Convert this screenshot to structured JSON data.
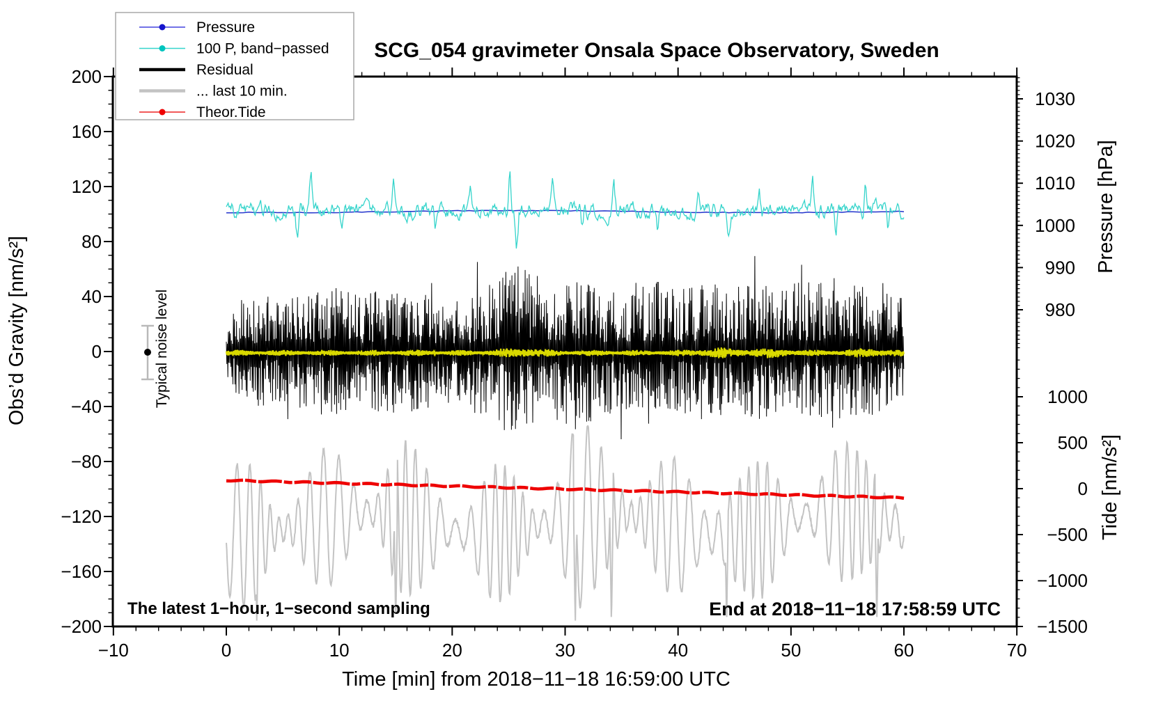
{
  "title": "SCG_054 gravimeter Onsala Space Observatory, Sweden",
  "annotations": {
    "sampling_note": "The latest 1−hour, 1−second sampling",
    "end_note": "End at 2018−11−18 17:58:59 UTC",
    "noise_marker_label": "Typical noise level"
  },
  "legend": {
    "items": [
      {
        "label": "Pressure",
        "color": "#4444dd",
        "dot_color": "#1515cc",
        "thick": false,
        "has_dot": true
      },
      {
        "label": "100 P, band−passed",
        "color": "#35d4cb",
        "dot_color": "#00c4be",
        "thick": false,
        "has_dot": true
      },
      {
        "label": "Residual",
        "color": "#000000",
        "dot_color": "#000000",
        "thick": true,
        "has_dot": false
      },
      {
        "label": "... last 10 min.",
        "color": "#c3c3c3",
        "dot_color": "#c3c3c3",
        "thick": true,
        "has_dot": false
      },
      {
        "label": "Theor.Tide",
        "color": "#ee2222",
        "dot_color": "#ee0000",
        "thick": false,
        "has_dot": true
      }
    ]
  },
  "axes": {
    "x": {
      "label": "Time [min] from 2018−11−18 16:59:00 UTC",
      "range": [
        -10,
        70
      ],
      "major_ticks": [
        -10,
        0,
        10,
        20,
        30,
        40,
        50,
        60,
        70
      ],
      "tick_labels": [
        "−10",
        "0",
        "10",
        "20",
        "30",
        "40",
        "50",
        "60",
        "70"
      ],
      "minor_step": 2
    },
    "y_gravity": {
      "label": "Obs’d Gravity [nm/s²]",
      "range": [
        -200,
        200
      ],
      "major_ticks": [
        -200,
        -160,
        -120,
        -80,
        -40,
        0,
        40,
        80,
        120,
        160,
        200
      ],
      "tick_labels": [
        "−200",
        "−160",
        "−120",
        "−80",
        "−40",
        "0",
        "40",
        "80",
        "120",
        "160",
        "200"
      ],
      "minor_step": 10
    },
    "y_pressure": {
      "label": "Pressure [hPa]",
      "major_ticks": [
        980,
        990,
        1000,
        1010,
        1020,
        1030
      ],
      "tick_labels": [
        "980",
        "990",
        "1000",
        "1010",
        "1020",
        "1030"
      ],
      "minor_step": 1
    },
    "y_tide": {
      "label": "Tide [nm/s²]",
      "major_ticks": [
        -1500,
        -1000,
        -500,
        0,
        500,
        1000
      ],
      "tick_labels": [
        "−1500",
        "−1000",
        "−500",
        "0",
        "500",
        "1000"
      ],
      "minor_step": 100
    }
  },
  "chart_data": {
    "type": "line",
    "title": "SCG_054 gravimeter Onsala Space Observatory, Sweden",
    "xlabel": "Time [min] from 2018−11−18 16:59:00 UTC",
    "x_range_min": [
      -10,
      70
    ],
    "data_span_min": [
      0,
      60
    ],
    "grid": false,
    "legend_position": "top-left",
    "series": [
      {
        "id": "pressure",
        "label": "Pressure",
        "color": "#2233cc",
        "axis": "pressure_hPa",
        "approx_value_hPa": 1003,
        "t_range": [
          0,
          60
        ],
        "note": "smooth slowly-varying curve, almost completely hidden behind the band-passed trace"
      },
      {
        "id": "band_passed",
        "label": "100 P, band−passed",
        "color": "#35d4cb",
        "axis": "gravity_nm_s2",
        "center": 102,
        "typical_amplitude": 9,
        "spike_amplitude": 33,
        "t_range": [
          0,
          60
        ]
      },
      {
        "id": "residual",
        "label": "Residual",
        "color": "#000000",
        "axis": "gravity_nm_s2",
        "center": 0,
        "typical_amplitude": 40,
        "burst_amplitude": 85,
        "burst_times_min": [
          8.6,
          15,
          25.8,
          31.3,
          37.5,
          43,
          48.3,
          54.2
        ],
        "t_range": [
          0,
          60
        ]
      },
      {
        "id": "residual_smoothed",
        "label": "",
        "color": "#d9d900",
        "axis": "gravity_nm_s2",
        "center": 0,
        "typical_amplitude": 2.5,
        "t_range": [
          0,
          60
        ],
        "note": "thin olive/yellow trace riding on the residual at zero level"
      },
      {
        "id": "residual_last10",
        "label": "... last 10 min.",
        "color": "#c3c3c3",
        "axis": "gravity_nm_s2",
        "center": -124,
        "typical_amplitude": 45,
        "oscillation_period_min": 1.1,
        "spike_times_min": [
          2.7,
          15.0,
          30.9,
          34.1,
          44.3,
          57.6
        ],
        "spike_floor": -198,
        "t_range": [
          0,
          60
        ]
      },
      {
        "id": "theor_tide",
        "label": "Theor.Tide",
        "color": "#ee0000",
        "axis": "tide_nm_s2",
        "start_value": 90,
        "end_value": -100,
        "t_range": [
          0,
          60
        ],
        "note": "thick nearly straight red line sloping gently downward"
      }
    ],
    "noise_marker": {
      "t_min": -7,
      "value": 0,
      "error": 20,
      "axis": "gravity_nm_s2",
      "label": "Typical noise level"
    }
  }
}
